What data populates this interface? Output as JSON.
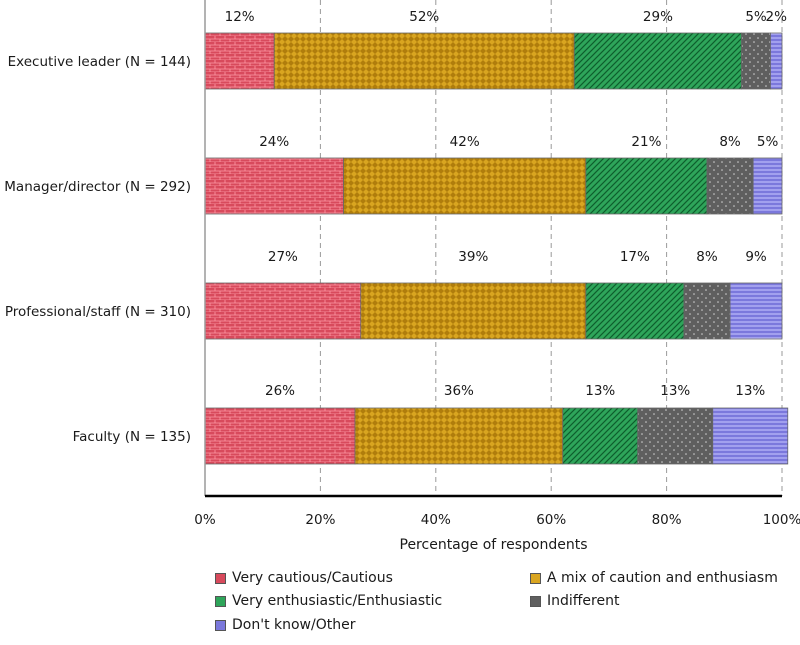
{
  "chart_data": {
    "type": "bar",
    "orientation": "horizontal",
    "stacked": true,
    "categories": [
      "Executive leader (N = 144)",
      "Manager/director (N = 292)",
      "Professional/staff (N = 310)",
      "Faculty (N = 135)"
    ],
    "series": [
      {
        "name": "Very cautious/Cautious",
        "values": [
          12,
          24,
          27,
          26
        ],
        "color": "#d84a5c"
      },
      {
        "name": "A mix of caution and enthusiasm",
        "values": [
          52,
          42,
          39,
          36
        ],
        "color": "#d9a520"
      },
      {
        "name": "Very enthusiastic/Enthusiastic",
        "values": [
          29,
          21,
          17,
          13
        ],
        "color": "#2ea55a"
      },
      {
        "name": "Indifferent",
        "values": [
          5,
          8,
          8,
          13
        ],
        "color": "#5f5f5f"
      },
      {
        "name": "Don't know/Other",
        "values": [
          2,
          5,
          9,
          13
        ],
        "color": "#7b78dc"
      }
    ],
    "xlabel": "Percentage of respondents",
    "ylabel": "",
    "xlim": [
      0,
      100
    ],
    "xticks": [
      "0%",
      "20%",
      "40%",
      "60%",
      "80%",
      "100%"
    ],
    "grid": "vertical dashed",
    "legend_position": "bottom"
  }
}
